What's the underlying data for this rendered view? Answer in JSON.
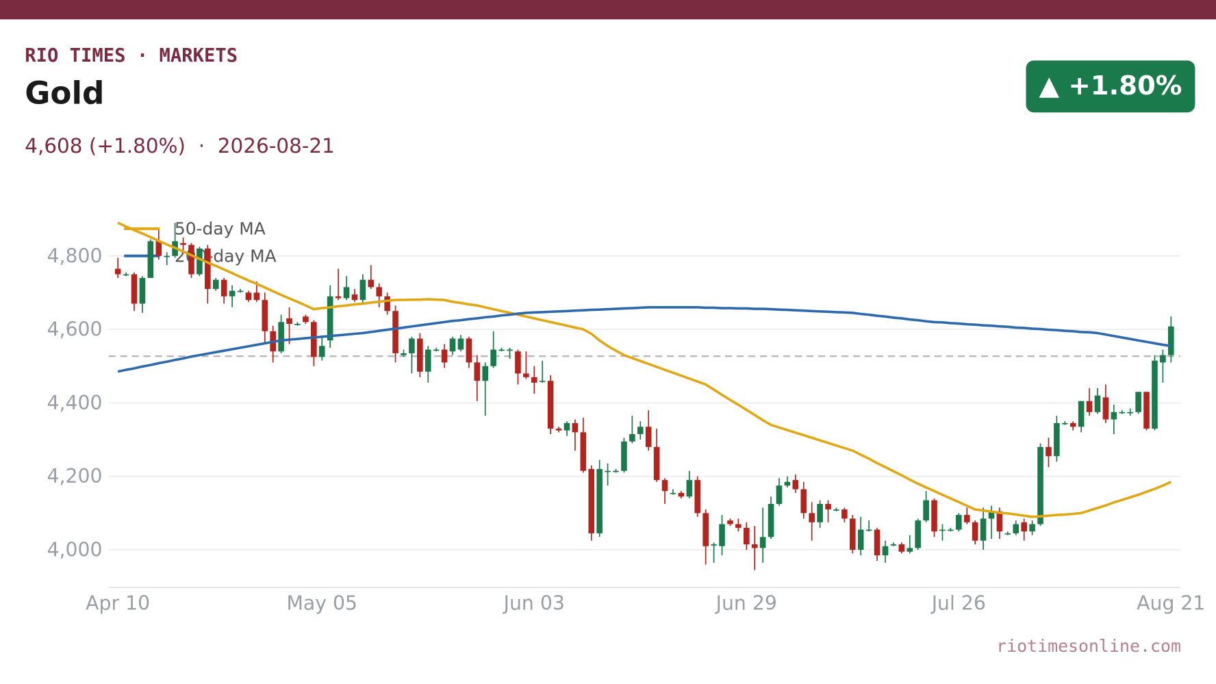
{
  "header": {
    "brand": "RIO TIMES · MARKETS",
    "title": "Gold",
    "subtitle": "4,608 (+1.80%)  ·  2026-08-21",
    "badge": "▲ +1.80%"
  },
  "footer": "riotimesonline.com",
  "chart_data": {
    "type": "candlestick",
    "categories": [
      "Apr 10",
      null,
      null,
      null,
      null,
      null,
      null,
      null,
      null,
      null,
      null,
      null,
      null,
      null,
      null,
      null,
      null,
      null,
      null,
      null,
      null,
      null,
      null,
      null,
      null,
      "May 05",
      null,
      null,
      null,
      null,
      null,
      null,
      null,
      null,
      null,
      null,
      null,
      null,
      null,
      null,
      null,
      null,
      null,
      null,
      null,
      null,
      null,
      null,
      null,
      null,
      null,
      "Jun 03",
      null,
      null,
      null,
      null,
      null,
      null,
      null,
      null,
      null,
      null,
      null,
      null,
      null,
      null,
      null,
      null,
      null,
      null,
      null,
      null,
      null,
      null,
      null,
      null,
      null,
      "Jun 29",
      null,
      null,
      null,
      null,
      null,
      null,
      null,
      null,
      null,
      null,
      null,
      null,
      null,
      null,
      null,
      null,
      null,
      null,
      null,
      null,
      null,
      null,
      null,
      null,
      null,
      "Jul 26",
      null,
      null,
      null,
      null,
      null,
      null,
      null,
      null,
      null,
      null,
      null,
      null,
      null,
      null,
      null,
      null,
      null,
      null,
      null,
      null,
      null,
      null,
      null,
      null,
      null,
      "Aug 21"
    ],
    "open": [
      4765,
      4750,
      4750,
      4670,
      4740,
      4840,
      4800,
      4800,
      4835,
      4830,
      4750,
      4820,
      4710,
      4735,
      4690,
      4705,
      4700,
      4700,
      4680,
      4595,
      4540,
      4630,
      4615,
      4635,
      4620,
      4525,
      4570,
      4690,
      4685,
      4695,
      4680,
      4735,
      4715,
      4690,
      4650,
      4530,
      4535,
      4575,
      4485,
      4545,
      4545,
      4540,
      4545,
      4575,
      4510,
      4460,
      4500,
      4545,
      4545,
      4540,
      4480,
      4470,
      4460,
      4460,
      4330,
      4325,
      4345,
      4320,
      4220,
      4045,
      4215,
      4215,
      4215,
      4295,
      4315,
      4335,
      4280,
      4190,
      4155,
      4155,
      4145,
      4190,
      4100,
      4015,
      4010,
      4080,
      4070,
      4060,
      4015,
      4005,
      4035,
      4125,
      4175,
      4190,
      4165,
      4100,
      4075,
      4125,
      4110,
      4110,
      4085,
      4000,
      4055,
      4055,
      3985,
      4015,
      4015,
      3995,
      4005,
      4080,
      4135,
      4055,
      4055,
      4055,
      4095,
      4075,
      4025,
      4085,
      4105,
      4045,
      4045,
      4075,
      4050,
      4070,
      4280,
      4255,
      4345,
      4345,
      4335,
      4405,
      4375,
      4415,
      4355,
      4375,
      4375,
      4375,
      4430,
      4330,
      4510,
      4530
    ],
    "high": [
      4795,
      4755,
      4755,
      4745,
      4845,
      4870,
      4810,
      4890,
      4850,
      4835,
      4825,
      4830,
      4740,
      4740,
      4720,
      4710,
      4705,
      4730,
      4700,
      4610,
      4640,
      4660,
      4620,
      4640,
      4625,
      4580,
      4720,
      4765,
      4745,
      4710,
      4750,
      4775,
      4725,
      4700,
      4665,
      4545,
      4580,
      4590,
      4555,
      4550,
      4560,
      4580,
      4585,
      4580,
      4530,
      4510,
      4595,
      4550,
      4550,
      4545,
      4540,
      4500,
      4515,
      4475,
      4335,
      4350,
      4355,
      4360,
      4230,
      4245,
      4235,
      4220,
      4305,
      4365,
      4350,
      4380,
      4330,
      4195,
      4165,
      4160,
      4215,
      4200,
      4110,
      4020,
      4095,
      4085,
      4085,
      4075,
      4065,
      4115,
      4145,
      4195,
      4200,
      4205,
      4185,
      4130,
      4135,
      4135,
      4115,
      4115,
      4095,
      4090,
      4080,
      4060,
      4025,
      4020,
      4020,
      4040,
      4085,
      4160,
      4140,
      4070,
      4060,
      4100,
      4115,
      4080,
      4115,
      4120,
      4115,
      4050,
      4080,
      4085,
      4080,
      4290,
      4305,
      4365,
      4350,
      4350,
      4405,
      4440,
      4440,
      4450,
      4395,
      4380,
      4385,
      4430,
      4430,
      4530,
      4545,
      4635
    ],
    "low": [
      4740,
      4745,
      4650,
      4645,
      4740,
      4790,
      4775,
      4795,
      4815,
      4740,
      4745,
      4670,
      4705,
      4670,
      4660,
      4700,
      4675,
      4675,
      4560,
      4510,
      4535,
      4560,
      4610,
      4615,
      4500,
      4515,
      4550,
      4680,
      4680,
      4675,
      4670,
      4710,
      4660,
      4640,
      4510,
      4525,
      4480,
      4470,
      4455,
      4540,
      4495,
      4530,
      4540,
      4495,
      4405,
      4365,
      4495,
      4540,
      4520,
      4450,
      4465,
      4425,
      4455,
      4315,
      4320,
      4310,
      4270,
      4210,
      4025,
      4035,
      4175,
      4210,
      4210,
      4290,
      4300,
      4270,
      4185,
      4125,
      4150,
      4140,
      4140,
      4090,
      3960,
      3965,
      3985,
      4065,
      4050,
      4000,
      3945,
      3965,
      4030,
      4120,
      4170,
      4155,
      4085,
      4025,
      4060,
      4075,
      4105,
      4075,
      3990,
      3985,
      4050,
      3970,
      3965,
      4010,
      3990,
      3990,
      4000,
      4075,
      4035,
      4025,
      4050,
      4050,
      4070,
      4015,
      4000,
      4030,
      4030,
      4040,
      4040,
      4025,
      4040,
      4065,
      4225,
      4240,
      4340,
      4325,
      4320,
      4365,
      4370,
      4345,
      4315,
      4370,
      4365,
      4370,
      4325,
      4325,
      4455,
      4510
    ],
    "close": [
      4750,
      4750,
      4670,
      4740,
      4840,
      4800,
      4800,
      4840,
      4830,
      4750,
      4820,
      4710,
      4735,
      4690,
      4705,
      4705,
      4680,
      4680,
      4595,
      4540,
      4620,
      4615,
      4615,
      4620,
      4525,
      4555,
      4690,
      4685,
      4715,
      4680,
      4735,
      4715,
      4690,
      4650,
      4535,
      4535,
      4575,
      4485,
      4545,
      4545,
      4510,
      4575,
      4575,
      4510,
      4460,
      4500,
      4545,
      4545,
      4545,
      4480,
      4470,
      4455,
      4460,
      4330,
      4325,
      4345,
      4320,
      4215,
      4045,
      4220,
      4215,
      4215,
      4295,
      4315,
      4335,
      4280,
      4190,
      4160,
      4155,
      4145,
      4190,
      4100,
      4010,
      4015,
      4070,
      4070,
      4060,
      4015,
      4005,
      4035,
      4125,
      4175,
      4185,
      4165,
      4100,
      4075,
      4125,
      4110,
      4110,
      4085,
      4000,
      4055,
      4055,
      3985,
      4010,
      4015,
      3995,
      4005,
      4080,
      4135,
      4050,
      4055,
      4055,
      4095,
      4075,
      4025,
      4085,
      4105,
      4050,
      4045,
      4070,
      4050,
      4070,
      4280,
      4255,
      4345,
      4345,
      4335,
      4405,
      4375,
      4420,
      4355,
      4375,
      4375,
      4375,
      4430,
      4330,
      4515,
      4530,
      4608
    ],
    "up_color": "#1b7a4b",
    "down_color": "#b3241f",
    "series": [
      {
        "name": "50-day MA",
        "color": "#e0a815",
        "values": [
          4890,
          4880,
          4870,
          4861,
          4851,
          4841,
          4831,
          4822,
          4812,
          4802,
          4792,
          4782,
          4773,
          4763,
          4753,
          4743,
          4733,
          4724,
          4714,
          4704,
          4694,
          4684,
          4675,
          4665,
          4655,
          4658,
          4660,
          4663,
          4665,
          4668,
          4670,
          4673,
          4675,
          4678,
          4680,
          4680,
          4681,
          4681,
          4682,
          4681,
          4680,
          4675,
          4672,
          4668,
          4665,
          4660,
          4655,
          4650,
          4645,
          4640,
          4635,
          4630,
          4625,
          4620,
          4615,
          4610,
          4605,
          4600,
          4588,
          4570,
          4555,
          4542,
          4530,
          4522,
          4514,
          4506,
          4498,
          4490,
          4482,
          4474,
          4466,
          4458,
          4450,
          4436,
          4422,
          4408,
          4395,
          4381,
          4367,
          4353,
          4340,
          4333,
          4326,
          4319,
          4312,
          4305,
          4298,
          4291,
          4284,
          4277,
          4270,
          4259,
          4248,
          4236,
          4225,
          4214,
          4203,
          4191,
          4180,
          4170,
          4160,
          4150,
          4140,
          4130,
          4120,
          4110,
          4107,
          4104,
          4101,
          4099,
          4096,
          4093,
          4090,
          4091,
          4093,
          4095,
          4096,
          4098,
          4100,
          4107,
          4114,
          4121,
          4129,
          4136,
          4143,
          4150,
          4158,
          4166,
          4175,
          4185
        ]
      },
      {
        "name": "200-day MA",
        "color": "#2e69ac",
        "values": [
          4485,
          4490,
          4494,
          4499,
          4503,
          4508,
          4512,
          4517,
          4521,
          4526,
          4530,
          4534,
          4538,
          4542,
          4546,
          4550,
          4554,
          4558,
          4562,
          4566,
          4570,
          4572,
          4574,
          4576,
          4578,
          4580,
          4582,
          4584,
          4586,
          4588,
          4590,
          4593,
          4596,
          4599,
          4602,
          4605,
          4608,
          4611,
          4614,
          4617,
          4620,
          4623,
          4625,
          4628,
          4630,
          4633,
          4635,
          4638,
          4640,
          4643,
          4645,
          4646,
          4647,
          4648,
          4649,
          4650,
          4651,
          4652,
          4653,
          4654,
          4655,
          4656,
          4657,
          4658,
          4659,
          4660,
          4660,
          4660,
          4660,
          4660,
          4660,
          4660,
          4659,
          4659,
          4658,
          4658,
          4657,
          4657,
          4656,
          4656,
          4655,
          4654,
          4653,
          4652,
          4651,
          4650,
          4649,
          4648,
          4647,
          4646,
          4645,
          4642,
          4640,
          4637,
          4635,
          4632,
          4630,
          4627,
          4625,
          4622,
          4620,
          4619,
          4617,
          4616,
          4614,
          4613,
          4611,
          4610,
          4608,
          4607,
          4605,
          4604,
          4602,
          4601,
          4599,
          4598,
          4596,
          4595,
          4593,
          4592,
          4590,
          4586,
          4582,
          4578,
          4574,
          4570,
          4566,
          4562,
          4558,
          4555
        ]
      }
    ],
    "reference_line": 4527,
    "ylim": [
      3900,
      4900
    ],
    "yticks": [
      {
        "value": 4000,
        "label": "4,000"
      },
      {
        "value": 4200,
        "label": "4,200"
      },
      {
        "value": 4400,
        "label": "4,400"
      },
      {
        "value": 4600,
        "label": "4,600"
      },
      {
        "value": 4800,
        "label": "4,800"
      }
    ],
    "grid": true,
    "legend": "top-left"
  }
}
